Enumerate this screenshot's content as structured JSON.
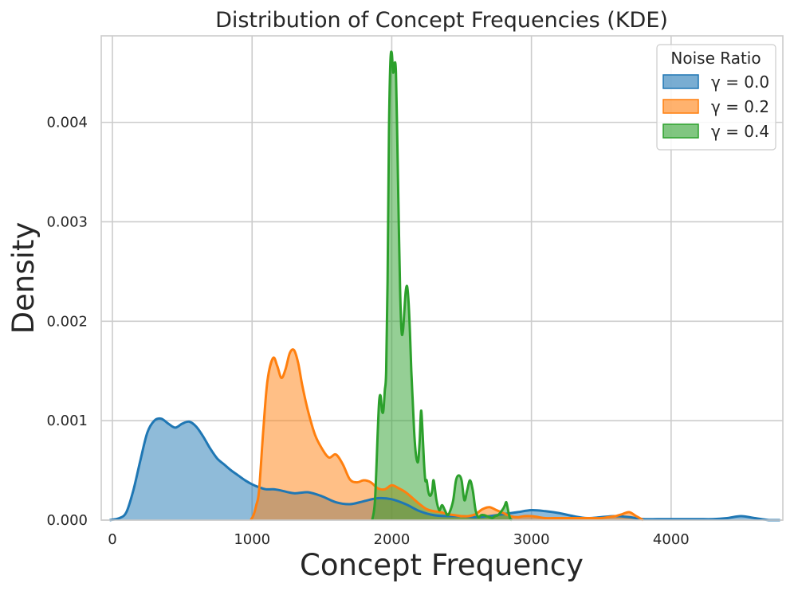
{
  "chart_data": {
    "type": "area",
    "title": "Distribution of Concept Frequencies (KDE)",
    "xlabel": "Concept Frequency",
    "ylabel": "Density",
    "xlim": [
      -80,
      4800
    ],
    "ylim": [
      0,
      0.00487
    ],
    "xticks": [
      0,
      1000,
      2000,
      3000,
      4000
    ],
    "xtick_labels": [
      "0",
      "1000",
      "2000",
      "3000",
      "4000"
    ],
    "yticks": [
      0,
      0.001,
      0.002,
      0.003,
      0.004
    ],
    "ytick_labels": [
      "0.000",
      "0.001",
      "0.002",
      "0.003",
      "0.004"
    ],
    "grid": true,
    "legend": {
      "title": "Noise Ratio",
      "placement": "top-right"
    },
    "series": [
      {
        "name": "γ = 0.0",
        "color": "#1f77b4",
        "x": [
          -20,
          50,
          100,
          150,
          200,
          250,
          300,
          350,
          400,
          450,
          500,
          550,
          600,
          650,
          700,
          750,
          800,
          850,
          900,
          950,
          1000,
          1050,
          1100,
          1150,
          1200,
          1300,
          1400,
          1500,
          1600,
          1700,
          1800,
          1900,
          2000,
          2100,
          2200,
          2300,
          2400,
          2500,
          2600,
          2700,
          2800,
          2900,
          3000,
          3100,
          3200,
          3300,
          3400,
          3500,
          3600,
          3700,
          3800,
          3900,
          4000,
          4100,
          4200,
          4300,
          4400,
          4500,
          4600,
          4700,
          4780
        ],
        "y": [
          0,
          2e-05,
          8e-05,
          0.0003,
          0.0006,
          0.00088,
          0.001,
          0.00102,
          0.00097,
          0.00093,
          0.00097,
          0.00099,
          0.00094,
          0.00084,
          0.00072,
          0.00062,
          0.00056,
          0.0005,
          0.00045,
          0.0004,
          0.00036,
          0.00033,
          0.00031,
          0.00031,
          0.0003,
          0.00027,
          0.00028,
          0.00024,
          0.00018,
          0.00016,
          0.00019,
          0.00022,
          0.00021,
          0.00016,
          9e-05,
          5e-05,
          4e-05,
          4e-05,
          3e-05,
          4e-05,
          6e-05,
          8e-05,
          0.0001,
          9e-05,
          7e-05,
          4e-05,
          2e-05,
          3e-05,
          4e-05,
          3e-05,
          1e-05,
          1e-05,
          1e-05,
          1e-05,
          1e-05,
          1e-05,
          2e-05,
          4e-05,
          2e-05,
          0,
          0
        ]
      },
      {
        "name": "γ = 0.2",
        "color": "#ff7f0e",
        "x": [
          990,
          1010,
          1030,
          1050,
          1080,
          1110,
          1150,
          1180,
          1210,
          1240,
          1270,
          1300,
          1330,
          1360,
          1400,
          1450,
          1500,
          1550,
          1600,
          1650,
          1700,
          1750,
          1800,
          1850,
          1900,
          1950,
          2000,
          2050,
          2100,
          2150,
          2200,
          2250,
          2300,
          2350,
          2400,
          2450,
          2500,
          2550,
          2600,
          2650,
          2700,
          2750,
          2800,
          2850,
          2900,
          2950,
          3000,
          3050,
          3100,
          3200,
          3300,
          3400,
          3500,
          3550,
          3600,
          3650,
          3700,
          3750,
          3800
        ],
        "y": [
          0,
          5e-05,
          0.00015,
          0.0003,
          0.0009,
          0.0014,
          0.00163,
          0.00155,
          0.00143,
          0.00152,
          0.00168,
          0.00171,
          0.00158,
          0.00135,
          0.0011,
          0.00086,
          0.00072,
          0.00063,
          0.00066,
          0.00056,
          0.00041,
          0.00038,
          0.0004,
          0.00038,
          0.00032,
          0.00031,
          0.00035,
          0.00032,
          0.00028,
          0.00022,
          0.00016,
          0.00011,
          9e-05,
          8e-05,
          6e-05,
          5e-05,
          4e-05,
          4e-05,
          6e-05,
          0.00011,
          0.00013,
          0.0001,
          7e-05,
          4e-05,
          3e-05,
          4e-05,
          4e-05,
          3e-05,
          2e-05,
          2e-05,
          2e-05,
          2e-05,
          2e-05,
          3e-05,
          4e-05,
          6e-05,
          8e-05,
          4e-05,
          0
        ]
      },
      {
        "name": "γ = 0.4",
        "color": "#2ca02c",
        "x": [
          1860,
          1880,
          1900,
          1910,
          1920,
          1930,
          1940,
          1950,
          1960,
          1970,
          1980,
          1990,
          2000,
          2010,
          2020,
          2030,
          2040,
          2050,
          2060,
          2070,
          2080,
          2090,
          2100,
          2110,
          2120,
          2130,
          2140,
          2150,
          2160,
          2170,
          2180,
          2190,
          2200,
          2210,
          2220,
          2230,
          2240,
          2250,
          2260,
          2270,
          2280,
          2290,
          2300,
          2320,
          2340,
          2360,
          2380,
          2400,
          2420,
          2440,
          2460,
          2480,
          2500,
          2520,
          2540,
          2560,
          2580,
          2600,
          2620,
          2640,
          2660,
          2680,
          2700,
          2720,
          2740,
          2760,
          2780,
          2800,
          2810,
          2820,
          2830,
          2840,
          2850,
          2860
        ],
        "y": [
          0,
          0.0002,
          0.0009,
          0.0012,
          0.00125,
          0.0011,
          0.0011,
          0.0013,
          0.0015,
          0.0024,
          0.0039,
          0.0046,
          0.0047,
          0.0045,
          0.0046,
          0.0045,
          0.0038,
          0.003,
          0.0023,
          0.0019,
          0.0019,
          0.0021,
          0.0023,
          0.00235,
          0.0022,
          0.0019,
          0.0015,
          0.0012,
          0.0009,
          0.0007,
          0.0006,
          0.0006,
          0.0008,
          0.0011,
          0.0009,
          0.0006,
          0.0004,
          0.0004,
          0.0003,
          0.00025,
          0.00025,
          0.0003,
          0.0004,
          0.0002,
          0.0001,
          0.00015,
          0.0001,
          5e-05,
          0.0001,
          0.0002,
          0.0004,
          0.00045,
          0.0004,
          0.0002,
          0.0003,
          0.0004,
          0.0003,
          0.0001,
          3e-05,
          5e-05,
          5e-05,
          4e-05,
          3e-05,
          2e-05,
          4e-05,
          5e-05,
          8e-05,
          0.00012,
          0.00015,
          0.00018,
          0.00012,
          5e-05,
          1e-05,
          0
        ]
      }
    ]
  }
}
